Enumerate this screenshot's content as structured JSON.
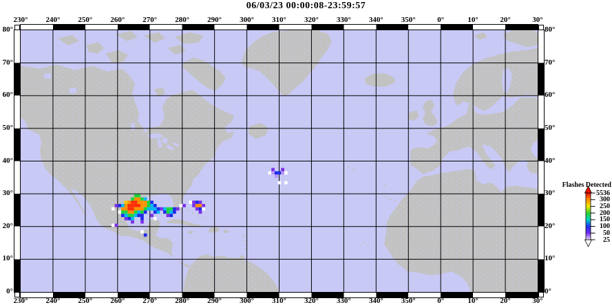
{
  "title": "06/03/23 00:00:08-23:59:57",
  "map": {
    "ocean_color": "#c9c9f6",
    "land_color": "#c2c2c2",
    "grid_color": "#000000",
    "lon_start_deg": 230,
    "lon_span_deg": 160,
    "lat_min_deg": 0,
    "lat_max_deg": 80,
    "grid_step_deg": 10
  },
  "axes": {
    "top_labels": [
      "230°",
      "240°",
      "250°",
      "260°",
      "270°",
      "280°",
      "290°",
      "300°",
      "310°",
      "320°",
      "330°",
      "340°",
      "350°",
      "0°",
      "10°",
      "20°",
      "30°"
    ],
    "bottom_labels": [
      "230°",
      "240°",
      "250°",
      "260°",
      "270°",
      "280°",
      "290°",
      "300°",
      "310°",
      "320°",
      "330°",
      "340°",
      "350°",
      "0°",
      "10°",
      "20°",
      "30°"
    ],
    "left_labels": [
      "80°",
      "70°",
      "60°",
      "50°",
      "40°",
      "30°",
      "20°",
      "10°",
      "0°"
    ],
    "right_labels": [
      "80°",
      "70°",
      "60°",
      "50°",
      "40°",
      "30°",
      "20°",
      "10°",
      "0°"
    ]
  },
  "legend": {
    "title": "Flashes Detected",
    "values": [
      "5536",
      "300",
      "250",
      "200",
      "150",
      "100",
      "50",
      "25"
    ],
    "colors_top_to_bottom": [
      "#ee1100",
      "#ff9100",
      "#f0e800",
      "#2ed32e",
      "#00d4c4",
      "#2233f0",
      "#6e2cf0",
      "#e8d8ff"
    ]
  },
  "chart_data": {
    "type": "heatmap",
    "title": "06/03/23 00:00:08-23:59:57",
    "legend_title": "Flashes Detected",
    "scale_values": [
      5536,
      300,
      250,
      200,
      150,
      100,
      50,
      25
    ],
    "extent": {
      "lon_deg": [
        230,
        30
      ],
      "lat_deg": [
        0,
        80
      ],
      "cell_deg": 1
    },
    "palette": {
      "R": "#ff2d00",
      "O": "#ff9100",
      "Y": "#ffc800",
      "G": "#1ed43c",
      "C": "#00b9f2",
      "B": "#1f2ae8",
      "V": "#7a2fe8",
      "P": "#b894f8",
      "W": "#ffffff"
    },
    "clusters": [
      {
        "name": "gulf-of-mexico-lightning",
        "anchor_lon_deg": 258.1,
        "anchor_lat_deg": 30.9,
        "cells": [
          [
            7,
            1,
            "G"
          ],
          [
            8,
            1,
            "G"
          ],
          [
            6,
            2,
            "G"
          ],
          [
            7,
            2,
            "O"
          ],
          [
            8,
            2,
            "O"
          ],
          [
            9,
            2,
            "G"
          ],
          [
            10,
            2,
            "C"
          ],
          [
            4,
            3,
            "Y"
          ],
          [
            5,
            3,
            "O"
          ],
          [
            6,
            3,
            "R"
          ],
          [
            7,
            3,
            "R"
          ],
          [
            8,
            3,
            "O"
          ],
          [
            9,
            3,
            "O"
          ],
          [
            10,
            3,
            "O"
          ],
          [
            11,
            3,
            "G"
          ],
          [
            12,
            3,
            "B"
          ],
          [
            1,
            4,
            "V"
          ],
          [
            2,
            4,
            "B"
          ],
          [
            3,
            4,
            "C"
          ],
          [
            4,
            4,
            "O"
          ],
          [
            5,
            4,
            "R"
          ],
          [
            6,
            4,
            "R"
          ],
          [
            7,
            4,
            "R"
          ],
          [
            8,
            4,
            "R"
          ],
          [
            9,
            4,
            "O"
          ],
          [
            10,
            4,
            "O"
          ],
          [
            11,
            4,
            "G"
          ],
          [
            12,
            4,
            "C"
          ],
          [
            13,
            4,
            "B"
          ],
          [
            0,
            5,
            "W"
          ],
          [
            3,
            5,
            "O"
          ],
          [
            4,
            5,
            "O"
          ],
          [
            5,
            5,
            "R"
          ],
          [
            6,
            5,
            "R"
          ],
          [
            7,
            5,
            "O"
          ],
          [
            8,
            5,
            "O"
          ],
          [
            9,
            5,
            "O"
          ],
          [
            10,
            5,
            "G"
          ],
          [
            11,
            5,
            "C"
          ],
          [
            12,
            5,
            "C"
          ],
          [
            13,
            5,
            "C"
          ],
          [
            14,
            5,
            "B"
          ],
          [
            15,
            5,
            "V"
          ],
          [
            16,
            5,
            "C"
          ],
          [
            17,
            5,
            "G"
          ],
          [
            18,
            5,
            "G"
          ],
          [
            19,
            5,
            "B"
          ],
          [
            20,
            5,
            "V"
          ],
          [
            2,
            6,
            "W"
          ],
          [
            3,
            6,
            "G"
          ],
          [
            4,
            6,
            "G"
          ],
          [
            5,
            6,
            "O"
          ],
          [
            6,
            6,
            "O"
          ],
          [
            7,
            6,
            "G"
          ],
          [
            8,
            6,
            "C"
          ],
          [
            9,
            6,
            "G"
          ],
          [
            10,
            6,
            "B"
          ],
          [
            13,
            6,
            "B"
          ],
          [
            14,
            6,
            "C"
          ],
          [
            16,
            6,
            "B"
          ],
          [
            17,
            6,
            "G"
          ],
          [
            18,
            6,
            "C"
          ],
          [
            19,
            6,
            "B"
          ],
          [
            3,
            7,
            "B"
          ],
          [
            4,
            7,
            "C"
          ],
          [
            5,
            7,
            "G"
          ],
          [
            6,
            7,
            "G"
          ],
          [
            7,
            7,
            "C"
          ],
          [
            8,
            7,
            "B"
          ],
          [
            9,
            7,
            "B"
          ],
          [
            12,
            7,
            "V"
          ],
          [
            17,
            7,
            "V"
          ],
          [
            18,
            7,
            "B"
          ],
          [
            4,
            8,
            "V"
          ],
          [
            5,
            8,
            "B"
          ],
          [
            6,
            8,
            "C"
          ],
          [
            9,
            8,
            "B"
          ],
          [
            13,
            8,
            "W"
          ],
          [
            6,
            9,
            "V"
          ],
          [
            9,
            9,
            "V"
          ],
          [
            0,
            10,
            "W"
          ],
          [
            1,
            10,
            "V"
          ],
          [
            9,
            12,
            "W"
          ],
          [
            10,
            13,
            "B"
          ],
          [
            21,
            4,
            "W"
          ],
          [
            22,
            4,
            "V"
          ],
          [
            24,
            3,
            "W"
          ],
          [
            25,
            3,
            "V"
          ],
          [
            26,
            3,
            "B"
          ],
          [
            27,
            3,
            "V"
          ],
          [
            25,
            4,
            "V"
          ],
          [
            26,
            4,
            "O"
          ],
          [
            27,
            4,
            "O"
          ],
          [
            28,
            4,
            "V"
          ],
          [
            26,
            5,
            "V"
          ],
          [
            27,
            5,
            "B"
          ],
          [
            28,
            5,
            "W"
          ],
          [
            27,
            6,
            "V"
          ]
        ]
      },
      {
        "name": "mid-atlantic-lightning",
        "anchor_lon_deg": 305.6,
        "anchor_lat_deg": 38.9,
        "cells": [
          [
            2,
            1,
            "V"
          ],
          [
            5,
            1,
            "V"
          ],
          [
            1,
            2,
            "W"
          ],
          [
            2,
            2,
            "P"
          ],
          [
            3,
            2,
            "B"
          ],
          [
            4,
            2,
            "B"
          ],
          [
            5,
            2,
            "P"
          ],
          [
            6,
            2,
            "W"
          ],
          [
            3,
            3,
            "P"
          ],
          [
            4,
            5,
            "W"
          ],
          [
            6,
            5,
            "W"
          ]
        ]
      }
    ]
  }
}
